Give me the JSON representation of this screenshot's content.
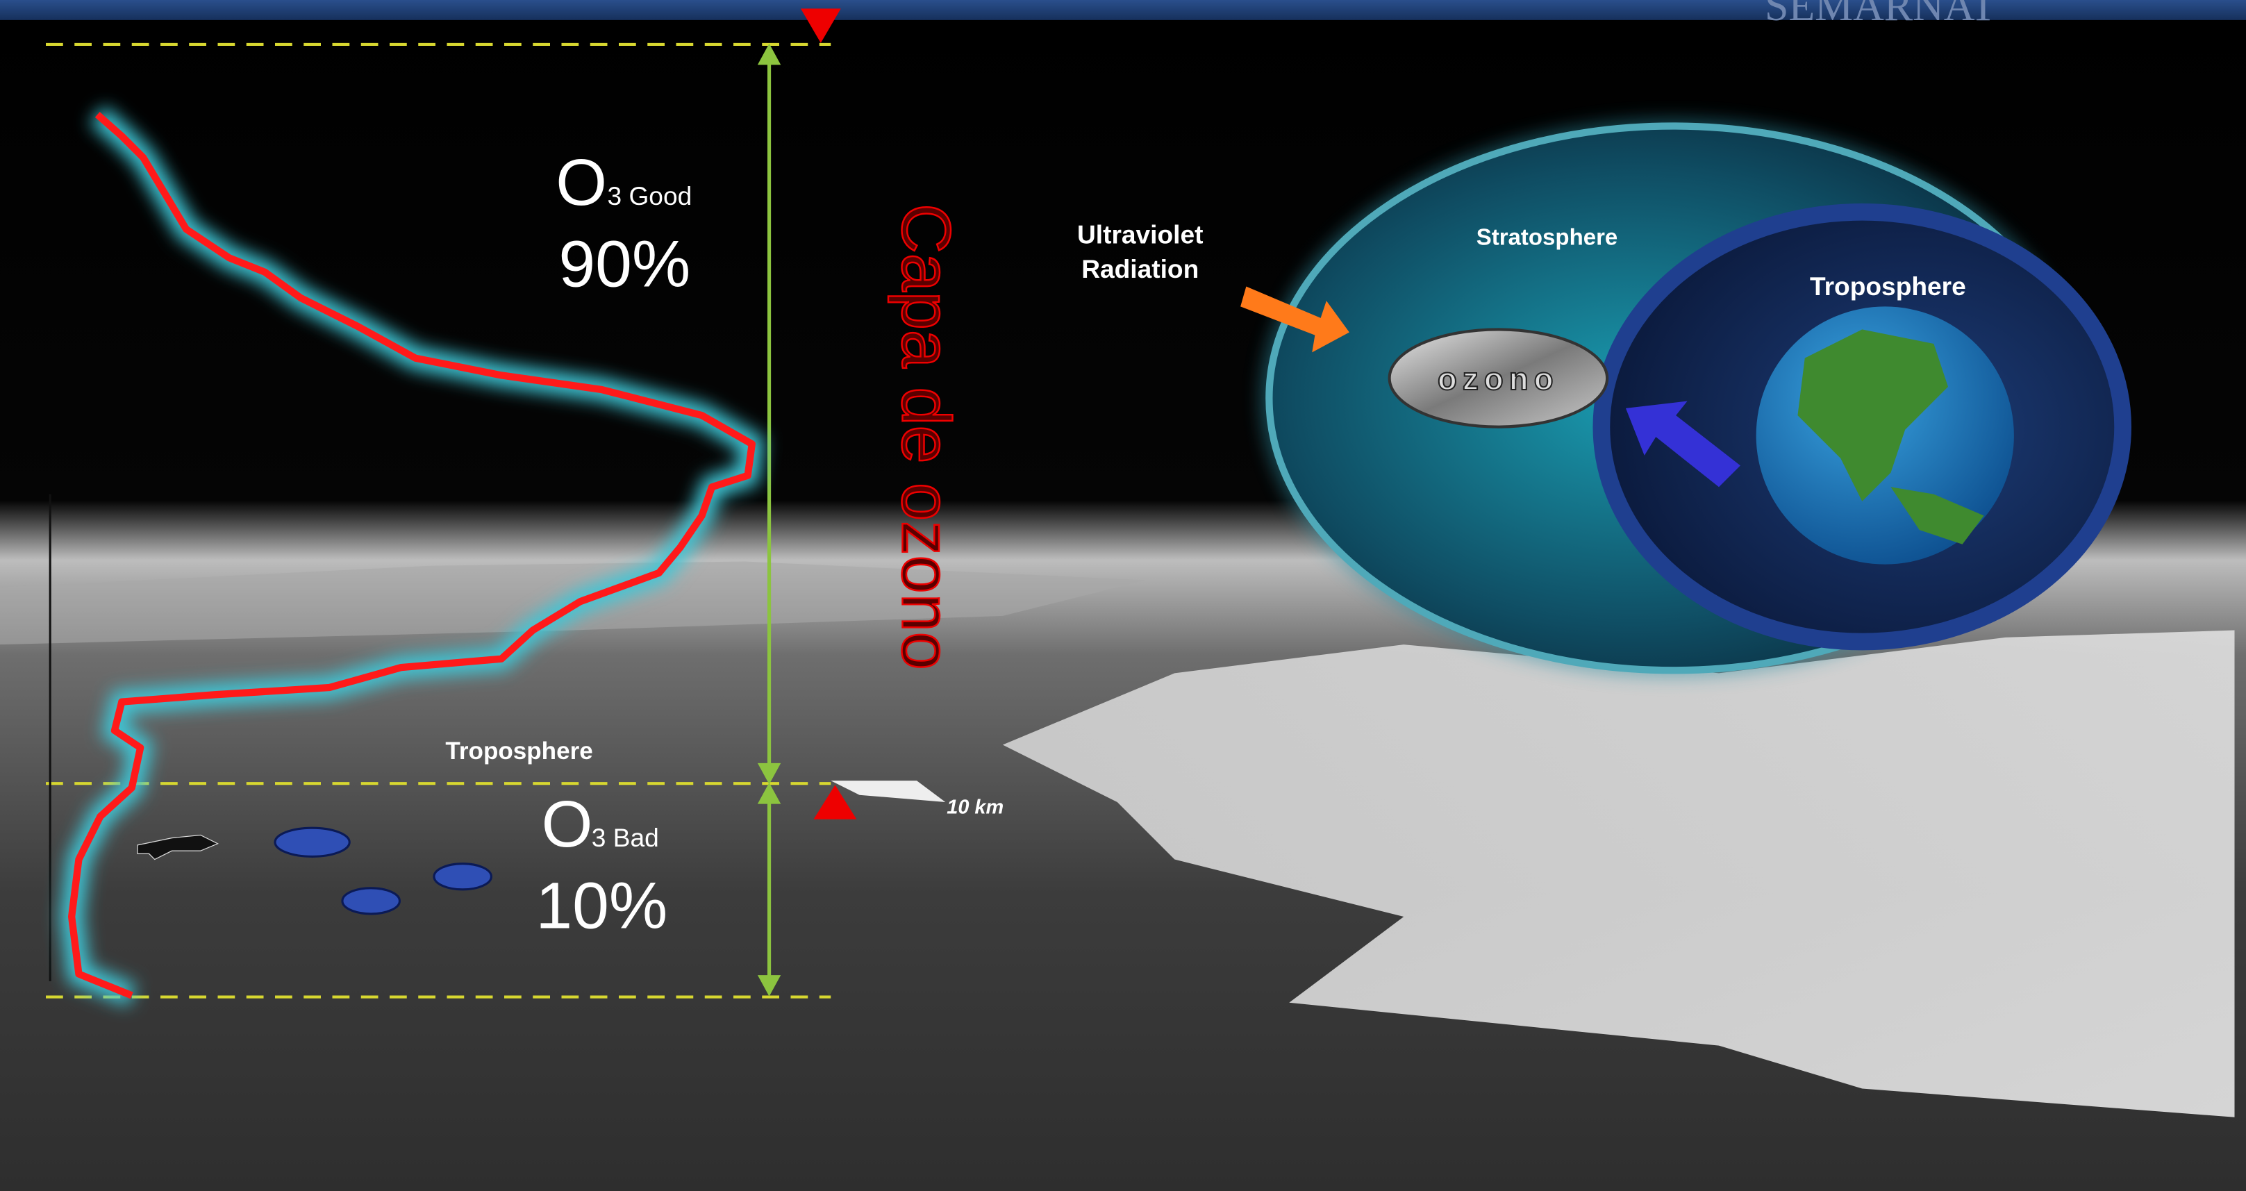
{
  "header": {
    "logo": "SEMARNAT"
  },
  "profile": {
    "upper": {
      "symbol": "O",
      "subscript": "3 Good",
      "percent": "90%"
    },
    "lower": {
      "symbol": "O",
      "subscript": "3 Bad",
      "percent": "10%"
    },
    "layer_label": "Capa de ozono",
    "troposphere_label": "Troposphere",
    "altitude_label": "10 km"
  },
  "diagram": {
    "radiation_label": [
      "Ultraviolet",
      "Radiation"
    ],
    "stratosphere_label": "Stratosphere",
    "troposphere_label": "Troposphere",
    "ozone_badge": "ozono"
  }
}
